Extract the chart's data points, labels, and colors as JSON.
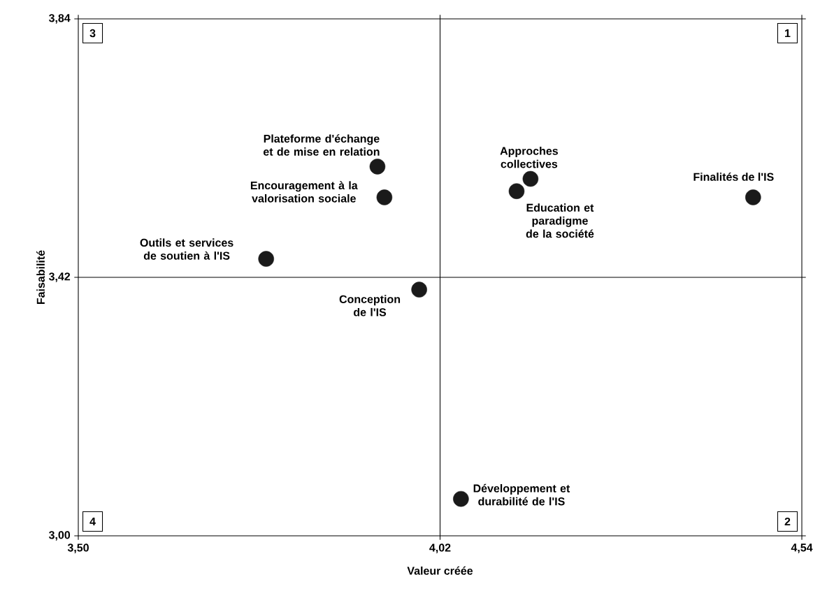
{
  "chart_data": {
    "type": "scatter",
    "xlabel": "Valeur créée",
    "ylabel": "Faisabilité",
    "x": [
      3.93,
      3.94,
      3.77,
      3.99,
      4.15,
      4.13,
      4.47,
      4.05
    ],
    "series": [
      {
        "color": "#1a1a1a",
        "values": [
          3.6,
          3.55,
          3.45,
          3.4,
          3.58,
          3.56,
          3.55,
          3.06
        ]
      }
    ],
    "marker": "circle",
    "grid": false,
    "xlim": [
      3.5,
      4.54
    ],
    "ylim": [
      3.0,
      3.84
    ],
    "xticks": [
      {
        "value": 3.5,
        "label": "3,50"
      },
      {
        "value": 4.02,
        "label": "4,02"
      },
      {
        "value": 4.54,
        "label": "4,54"
      }
    ],
    "yticks": [
      {
        "value": 3.0,
        "label": "3,00"
      },
      {
        "value": 3.42,
        "label": "3,42"
      },
      {
        "value": 3.84,
        "label": "3,84"
      }
    ],
    "ref_lines": [
      {
        "axis": "x",
        "value": 4.02,
        "color": "#000000"
      },
      {
        "axis": "y",
        "value": 3.42,
        "color": "#000000"
      }
    ],
    "annotations": [
      {
        "text": "Plateforme d'échange et de mise en relation",
        "x": 3.93,
        "y": 3.6
      },
      {
        "text": "Encouragement à la valorisation sociale",
        "x": 3.94,
        "y": 3.55
      },
      {
        "text": "Outils et services de soutien à l'IS",
        "x": 3.77,
        "y": 3.45
      },
      {
        "text": "Conception de l'IS",
        "x": 3.99,
        "y": 3.4
      },
      {
        "text": "Approches collectives",
        "x": 4.15,
        "y": 3.58
      },
      {
        "text": "Education et paradigme de la société",
        "x": 4.13,
        "y": 3.56
      },
      {
        "text": "Finalités de l'IS",
        "x": 4.47,
        "y": 3.55
      },
      {
        "text": "Développement et durabilité de l'IS",
        "x": 4.05,
        "y": 3.06
      },
      "3",
      "1",
      "4",
      "2"
    ]
  }
}
